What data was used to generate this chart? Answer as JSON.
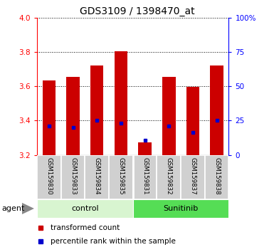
{
  "title": "GDS3109 / 1398470_at",
  "samples": [
    "GSM159830",
    "GSM159833",
    "GSM159834",
    "GSM159835",
    "GSM159831",
    "GSM159832",
    "GSM159837",
    "GSM159838"
  ],
  "red_values": [
    3.635,
    3.655,
    3.72,
    3.805,
    3.275,
    3.655,
    3.595,
    3.72
  ],
  "blue_values": [
    3.37,
    3.36,
    3.4,
    3.385,
    3.285,
    3.37,
    3.33,
    3.4
  ],
  "ymin": 3.2,
  "ymax": 4.0,
  "y2min": 0,
  "y2max": 100,
  "yticks": [
    3.2,
    3.4,
    3.6,
    3.8,
    4.0
  ],
  "y2ticks": [
    0,
    25,
    50,
    75,
    100
  ],
  "bar_color": "#cc0000",
  "dot_color": "#0000cc",
  "control_color": "#d8f5d0",
  "sunitinib_color": "#55dd55",
  "sample_box_color": "#d0d0d0",
  "legend_red": "transformed count",
  "legend_blue": "percentile rank within the sample",
  "agent_label": "agent"
}
